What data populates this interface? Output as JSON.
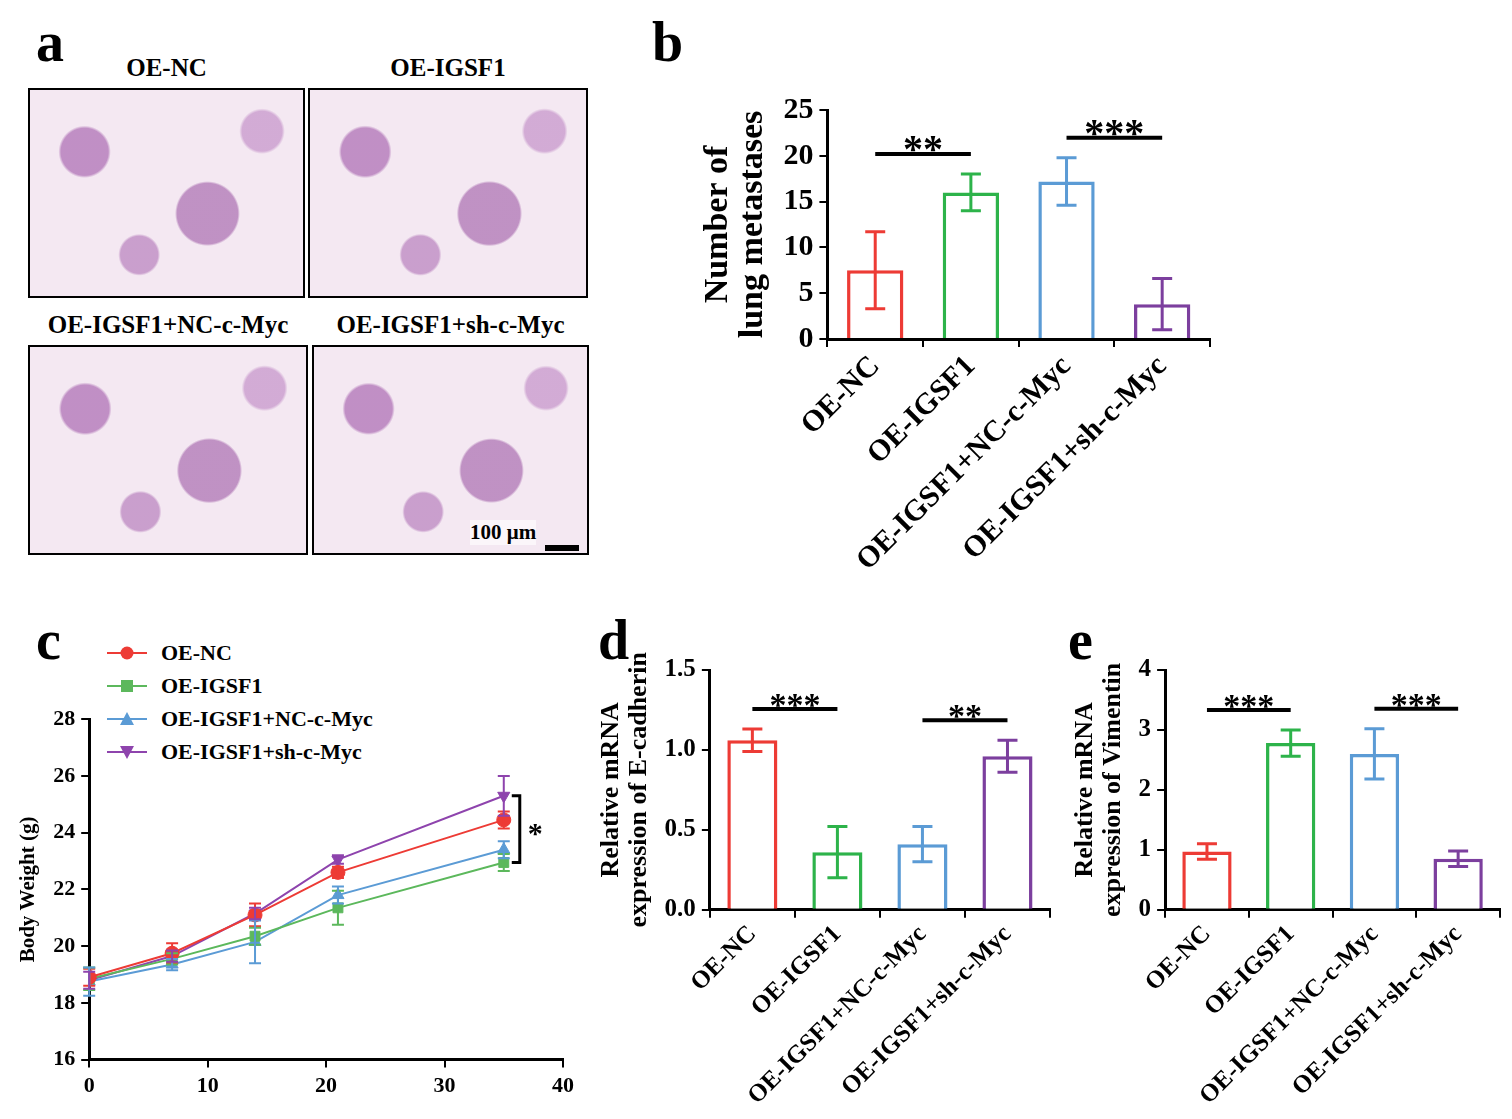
{
  "chart_data": [
    {
      "panel": "b",
      "type": "bar",
      "y_label": [
        "Number of",
        "lung metastases"
      ],
      "categories": [
        "OE-NC",
        "OE-IGSF1",
        "OE-IGSF1+NC-c-Myc",
        "OE-IGSF1+sh-c-Myc"
      ],
      "values": [
        7.5,
        16,
        17.2,
        3.8
      ],
      "errors": [
        4.2,
        2,
        2.6,
        2.8
      ],
      "colors": [
        "#ed3b35",
        "#2db34a",
        "#5b9bd5",
        "#7c3f9e"
      ],
      "ylim": [
        0,
        25
      ],
      "yticks": [
        0,
        5,
        10,
        15,
        20,
        25
      ],
      "grid": false,
      "annotations": [
        {
          "text": "**",
          "between": [
            "OE-NC",
            "OE-IGSF1"
          ]
        },
        {
          "text": "***",
          "between": [
            "OE-IGSF1+NC-c-Myc",
            "OE-IGSF1+sh-c-Myc"
          ]
        }
      ]
    },
    {
      "panel": "c",
      "type": "line",
      "y_label": "Body Weight (g)",
      "x": [
        0,
        7,
        14,
        21,
        35
      ],
      "xlim": [
        0,
        40
      ],
      "xticks": [
        0,
        10,
        20,
        30,
        40
      ],
      "ylim": [
        16,
        28
      ],
      "yticks": [
        16,
        18,
        20,
        22,
        24,
        26,
        28
      ],
      "grid": false,
      "legend": "top-left",
      "series": [
        {
          "name": "OE-NC",
          "color": "#ed3b35",
          "marker": "circle",
          "values": [
            18.9,
            19.75,
            21.1,
            22.6,
            24.45
          ],
          "errors": [
            0.3,
            0.35,
            0.4,
            0.2,
            0.3
          ]
        },
        {
          "name": "OE-IGSF1",
          "color": "#5cb85c",
          "marker": "square",
          "values": [
            18.85,
            19.55,
            20.35,
            21.35,
            22.95
          ],
          "errors": [
            0.4,
            0.2,
            0.3,
            0.6,
            0.3
          ]
        },
        {
          "name": "OE-IGSF1+NC-c-Myc",
          "color": "#5b9bd5",
          "marker": "triangle",
          "values": [
            18.75,
            19.35,
            20.15,
            21.8,
            23.4
          ],
          "errors": [
            0.5,
            0.2,
            0.75,
            0.3,
            0.3
          ]
        },
        {
          "name": "OE-IGSF1+sh-c-Myc",
          "color": "#8e44ad",
          "marker": "triangle-down",
          "values": [
            18.8,
            19.65,
            21.15,
            23.05,
            25.3
          ],
          "errors": [
            0.3,
            0.2,
            0.2,
            0.15,
            0.7
          ]
        }
      ],
      "annotations": [
        {
          "text": "*",
          "between": [
            "OE-IGSF1+sh-c-Myc",
            "OE-IGSF1"
          ]
        }
      ]
    },
    {
      "panel": "d",
      "type": "bar",
      "y_label": [
        "Relative mRNA",
        "expression of E-cadherin"
      ],
      "categories": [
        "OE-NC",
        "OE-IGSF1",
        "OE-IGSF1+NC-c-Myc",
        "OE-IGSF1+sh-c-Myc"
      ],
      "values": [
        1.06,
        0.36,
        0.41,
        0.96
      ],
      "errors": [
        0.07,
        0.16,
        0.11,
        0.1
      ],
      "colors": [
        "#ed3b35",
        "#2db34a",
        "#5b9bd5",
        "#7c3f9e"
      ],
      "ylim": [
        0,
        1.5
      ],
      "yticks": [
        {
          "value": 0,
          "label": "0.0"
        },
        {
          "value": 0.5,
          "label": "0.5"
        },
        {
          "value": 1,
          "label": "1.0"
        },
        {
          "value": 1.5,
          "label": "1.5"
        }
      ],
      "grid": false,
      "annotations": [
        {
          "text": "***",
          "between": [
            "OE-NC",
            "OE-IGSF1"
          ]
        },
        {
          "text": "**",
          "between": [
            "OE-IGSF1+NC-c-Myc",
            "OE-IGSF1+sh-c-Myc"
          ]
        }
      ]
    },
    {
      "panel": "e",
      "type": "bar",
      "y_label": [
        "Relative mRNA",
        "expression of Vimentin"
      ],
      "categories": [
        "OE-NC",
        "OE-IGSF1",
        "OE-IGSF1+NC-c-Myc",
        "OE-IGSF1+sh-c-Myc"
      ],
      "values": [
        0.97,
        2.78,
        2.6,
        0.85
      ],
      "errors": [
        0.13,
        0.22,
        0.42,
        0.13
      ],
      "colors": [
        "#ed3b35",
        "#2db34a",
        "#5b9bd5",
        "#7c3f9e"
      ],
      "ylim": [
        0,
        4
      ],
      "yticks": [
        0,
        1,
        2,
        3,
        4
      ],
      "grid": false,
      "annotations": [
        {
          "text": "***",
          "between": [
            "OE-NC",
            "OE-IGSF1"
          ]
        },
        {
          "text": "***",
          "between": [
            "OE-IGSF1+NC-c-Myc",
            "OE-IGSF1+sh-c-Myc"
          ]
        }
      ]
    }
  ],
  "images": {
    "panel": "a",
    "tiles": [
      "OE-NC",
      "OE-IGSF1",
      "OE-IGSF1+NC-c-Myc",
      "OE-IGSF1+sh-c-Myc"
    ],
    "scale_bar": "100 μm"
  }
}
